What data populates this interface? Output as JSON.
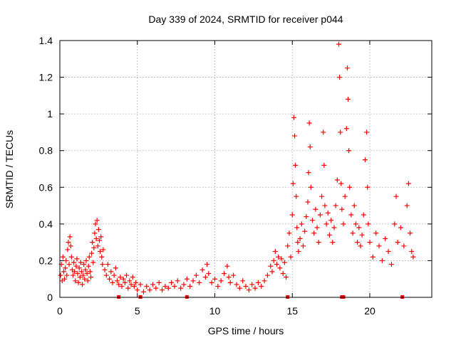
{
  "chart_data": {
    "type": "scatter",
    "title": "Day 339 of 2024, SRMTID for receiver p044",
    "xlabel": "GPS time / hours",
    "ylabel": "SRMTID / TECUs",
    "xlim": [
      0,
      24
    ],
    "ylim": [
      0,
      1.4
    ],
    "x_ticks": [
      0,
      5,
      10,
      15,
      20
    ],
    "x_tick_labels": [
      "0",
      "5",
      "10",
      "15",
      "20"
    ],
    "y_ticks": [
      0,
      0.2,
      0.4,
      0.6,
      0.8,
      1.0,
      1.2,
      1.4
    ],
    "y_tick_labels": [
      "0",
      "0.2",
      "0.4",
      "0.6",
      "0.8",
      "1",
      "1.2",
      "1.4"
    ],
    "grid": true,
    "marker": "+",
    "series": [
      {
        "name": "p044",
        "color": "#ff0000",
        "points": [
          [
            0.05,
            0.12
          ],
          [
            0.1,
            0.18
          ],
          [
            0.15,
            0.09
          ],
          [
            0.2,
            0.22
          ],
          [
            0.25,
            0.14
          ],
          [
            0.3,
            0.1
          ],
          [
            0.35,
            0.16
          ],
          [
            0.4,
            0.2
          ],
          [
            0.45,
            0.12
          ],
          [
            0.5,
            0.26
          ],
          [
            0.55,
            0.3
          ],
          [
            0.6,
            0.18
          ],
          [
            0.65,
            0.33
          ],
          [
            0.7,
            0.28
          ],
          [
            0.75,
            0.22
          ],
          [
            0.8,
            0.15
          ],
          [
            0.85,
            0.12
          ],
          [
            0.9,
            0.19
          ],
          [
            0.95,
            0.14
          ],
          [
            1.0,
            0.09
          ],
          [
            1.05,
            0.17
          ],
          [
            1.1,
            0.21
          ],
          [
            1.15,
            0.13
          ],
          [
            1.2,
            0.08
          ],
          [
            1.25,
            0.16
          ],
          [
            1.3,
            0.11
          ],
          [
            1.35,
            0.19
          ],
          [
            1.4,
            0.14
          ],
          [
            1.45,
            0.07
          ],
          [
            1.5,
            0.12
          ],
          [
            1.55,
            0.18
          ],
          [
            1.6,
            0.1
          ],
          [
            1.65,
            0.15
          ],
          [
            1.7,
            0.2
          ],
          [
            1.75,
            0.13
          ],
          [
            1.8,
            0.09
          ],
          [
            1.85,
            0.17
          ],
          [
            1.9,
            0.22
          ],
          [
            1.95,
            0.14
          ],
          [
            2.0,
            0.11
          ],
          [
            2.05,
            0.24
          ],
          [
            2.1,
            0.3
          ],
          [
            2.15,
            0.19
          ],
          [
            2.2,
            0.27
          ],
          [
            2.25,
            0.35
          ],
          [
            2.3,
            0.4
          ],
          [
            2.35,
            0.32
          ],
          [
            2.4,
            0.42
          ],
          [
            2.45,
            0.28
          ],
          [
            2.5,
            0.37
          ],
          [
            2.55,
            0.31
          ],
          [
            2.6,
            0.25
          ],
          [
            2.65,
            0.33
          ],
          [
            2.7,
            0.22
          ],
          [
            2.75,
            0.18
          ],
          [
            2.8,
            0.26
          ],
          [
            2.9,
            0.15
          ],
          [
            3.0,
            0.12
          ],
          [
            3.1,
            0.18
          ],
          [
            3.2,
            0.1
          ],
          [
            3.3,
            0.14
          ],
          [
            3.4,
            0.08
          ],
          [
            3.5,
            0.12
          ],
          [
            3.6,
            0.16
          ],
          [
            3.7,
            0.09
          ],
          [
            3.8,
            0.07
          ],
          [
            3.9,
            0.11
          ],
          [
            4.0,
            0.06
          ],
          [
            4.1,
            0.1
          ],
          [
            4.2,
            0.08
          ],
          [
            4.3,
            0.12
          ],
          [
            4.4,
            0.05
          ],
          [
            4.5,
            0.09
          ],
          [
            4.6,
            0.07
          ],
          [
            4.7,
            0.11
          ],
          [
            4.8,
            0.06
          ],
          [
            4.9,
            0.08
          ],
          [
            5.0,
            0.04
          ],
          [
            5.2,
            0.07
          ],
          [
            5.4,
            0.03
          ],
          [
            5.6,
            0.06
          ],
          [
            5.8,
            0.04
          ],
          [
            6.0,
            0.07
          ],
          [
            6.2,
            0.05
          ],
          [
            6.4,
            0.08
          ],
          [
            6.6,
            0.04
          ],
          [
            6.8,
            0.06
          ],
          [
            7.0,
            0.05
          ],
          [
            7.2,
            0.08
          ],
          [
            7.4,
            0.06
          ],
          [
            7.6,
            0.09
          ],
          [
            7.8,
            0.05
          ],
          [
            8.0,
            0.07
          ],
          [
            8.2,
            0.1
          ],
          [
            8.4,
            0.06
          ],
          [
            8.6,
            0.09
          ],
          [
            8.8,
            0.12
          ],
          [
            9.0,
            0.08
          ],
          [
            9.2,
            0.15
          ],
          [
            9.4,
            0.11
          ],
          [
            9.5,
            0.18
          ],
          [
            9.6,
            0.13
          ],
          [
            9.8,
            0.08
          ],
          [
            10.0,
            0.1
          ],
          [
            10.2,
            0.06
          ],
          [
            10.4,
            0.09
          ],
          [
            10.6,
            0.13
          ],
          [
            10.8,
            0.17
          ],
          [
            10.9,
            0.11
          ],
          [
            11.0,
            0.08
          ],
          [
            11.2,
            0.12
          ],
          [
            11.4,
            0.07
          ],
          [
            11.6,
            0.05
          ],
          [
            11.8,
            0.09
          ],
          [
            12.0,
            0.06
          ],
          [
            12.2,
            0.04
          ],
          [
            12.4,
            0.07
          ],
          [
            12.6,
            0.05
          ],
          [
            12.8,
            0.08
          ],
          [
            13.0,
            0.06
          ],
          [
            13.2,
            0.09
          ],
          [
            13.4,
            0.12
          ],
          [
            13.6,
            0.17
          ],
          [
            13.7,
            0.14
          ],
          [
            13.8,
            0.2
          ],
          [
            13.9,
            0.25
          ],
          [
            14.0,
            0.18
          ],
          [
            14.1,
            0.22
          ],
          [
            14.2,
            0.16
          ],
          [
            14.3,
            0.21
          ],
          [
            14.4,
            0.13
          ],
          [
            14.5,
            0.19
          ],
          [
            14.6,
            0.11
          ],
          [
            14.7,
            0.28
          ],
          [
            14.8,
            0.35
          ],
          [
            14.9,
            0.22
          ],
          [
            15.0,
            0.45
          ],
          [
            15.05,
            0.62
          ],
          [
            15.1,
            0.98
          ],
          [
            15.15,
            0.88
          ],
          [
            15.2,
            0.72
          ],
          [
            15.25,
            0.55
          ],
          [
            15.3,
            0.38
          ],
          [
            15.35,
            0.3
          ],
          [
            15.4,
            0.25
          ],
          [
            15.5,
            0.32
          ],
          [
            15.6,
            0.4
          ],
          [
            15.7,
            0.28
          ],
          [
            15.8,
            0.36
          ],
          [
            15.9,
            0.44
          ],
          [
            16.0,
            0.52
          ],
          [
            16.05,
            0.68
          ],
          [
            16.1,
            0.95
          ],
          [
            16.15,
            0.82
          ],
          [
            16.2,
            0.6
          ],
          [
            16.3,
            0.42
          ],
          [
            16.4,
            0.35
          ],
          [
            16.5,
            0.48
          ],
          [
            16.6,
            0.38
          ],
          [
            16.7,
            0.3
          ],
          [
            16.8,
            0.45
          ],
          [
            16.9,
            0.55
          ],
          [
            17.0,
            0.9
          ],
          [
            17.05,
            0.72
          ],
          [
            17.1,
            0.5
          ],
          [
            17.2,
            0.4
          ],
          [
            17.3,
            0.46
          ],
          [
            17.4,
            0.34
          ],
          [
            17.5,
            0.42
          ],
          [
            17.6,
            0.3
          ],
          [
            17.7,
            0.38
          ],
          [
            17.8,
            0.5
          ],
          [
            17.9,
            0.64
          ],
          [
            18.0,
            1.38
          ],
          [
            18.05,
            1.2
          ],
          [
            18.1,
            0.9
          ],
          [
            18.15,
            0.62
          ],
          [
            18.2,
            0.48
          ],
          [
            18.3,
            0.4
          ],
          [
            18.4,
            0.55
          ],
          [
            18.5,
            0.92
          ],
          [
            18.55,
            1.25
          ],
          [
            18.6,
            1.08
          ],
          [
            18.65,
            0.8
          ],
          [
            18.7,
            0.6
          ],
          [
            18.8,
            0.45
          ],
          [
            18.9,
            0.35
          ],
          [
            19.0,
            0.5
          ],
          [
            19.1,
            0.4
          ],
          [
            19.2,
            0.3
          ],
          [
            19.3,
            0.38
          ],
          [
            19.4,
            0.28
          ],
          [
            19.5,
            0.34
          ],
          [
            19.6,
            0.45
          ],
          [
            19.7,
            0.75
          ],
          [
            19.8,
            0.9
          ],
          [
            19.85,
            0.6
          ],
          [
            19.9,
            0.4
          ],
          [
            20.0,
            0.3
          ],
          [
            20.2,
            0.22
          ],
          [
            20.4,
            0.35
          ],
          [
            20.6,
            0.28
          ],
          [
            20.8,
            0.2
          ],
          [
            21.0,
            0.32
          ],
          [
            21.2,
            0.25
          ],
          [
            21.4,
            0.18
          ],
          [
            21.6,
            0.4
          ],
          [
            21.7,
            0.55
          ],
          [
            21.8,
            0.3
          ],
          [
            22.0,
            0.38
          ],
          [
            22.2,
            0.28
          ],
          [
            22.4,
            0.5
          ],
          [
            22.5,
            0.62
          ],
          [
            22.6,
            0.35
          ],
          [
            22.7,
            0.25
          ],
          [
            22.8,
            0.22
          ]
        ]
      }
    ],
    "zero_markers": [
      3.8,
      5.2,
      8.2,
      14.7,
      18.2,
      18.3,
      22.1
    ]
  }
}
